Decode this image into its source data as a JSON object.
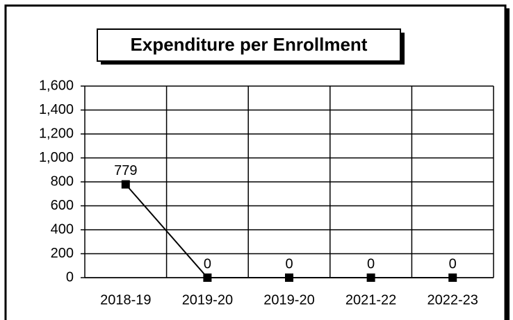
{
  "chart_data": {
    "type": "line",
    "title": "Expenditure per Enrollment",
    "categories": [
      "2018-19",
      "2019-20",
      "2019-20",
      "2021-22",
      "2022-23"
    ],
    "series": [
      {
        "name": "Expenditure per Enrollment",
        "color": "#000000",
        "values": [
          779,
          0,
          0,
          0,
          0
        ]
      }
    ],
    "ylim": [
      0,
      1600
    ],
    "yticks": [
      0,
      200,
      400,
      600,
      800,
      {
        "value": 1000,
        "label": "1,000"
      },
      {
        "value": 1200,
        "label": "1,200"
      },
      {
        "value": 1400,
        "label": "1,400"
      },
      {
        "value": 1600,
        "label": "1,600"
      }
    ],
    "grid": true
  }
}
